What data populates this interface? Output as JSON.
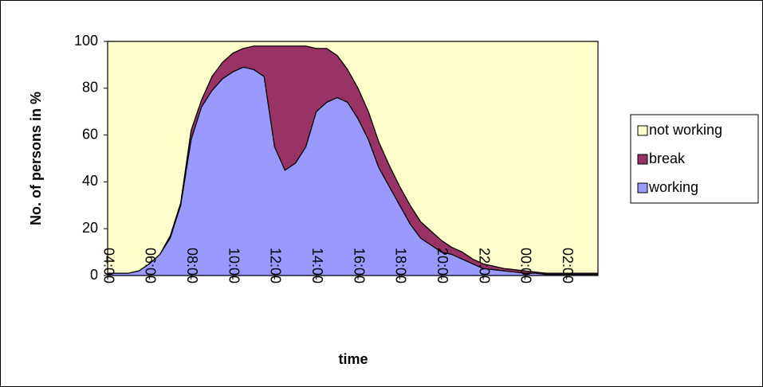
{
  "chart_data": {
    "type": "stacked-area",
    "x_label": "time",
    "y_label": "No. of persons in %",
    "categories": [
      "04:00",
      null,
      null,
      null,
      "06:00",
      null,
      null,
      null,
      "08:00",
      null,
      null,
      null,
      "10:00",
      null,
      null,
      null,
      "12:00",
      null,
      null,
      null,
      "14:00",
      null,
      null,
      null,
      "16:00",
      null,
      null,
      null,
      "18:00",
      null,
      null,
      null,
      "20:00",
      null,
      null,
      null,
      "22:00",
      null,
      null,
      null,
      "00:00",
      null,
      null,
      null,
      "02:00",
      null,
      null,
      null
    ],
    "series": [
      {
        "name": "working",
        "color": "#9999ff",
        "values": [
          1,
          1,
          1,
          2,
          5,
          9,
          16,
          30,
          58,
          72,
          79,
          84,
          87,
          89,
          88,
          85,
          55,
          45,
          48,
          55,
          70,
          74,
          76,
          74,
          67,
          58,
          46,
          38,
          30,
          22,
          16,
          13,
          10,
          9,
          7,
          5,
          3,
          2.5,
          2,
          1.5,
          1,
          1,
          0.5,
          0.5,
          0.5,
          0.5,
          0.5,
          0.5
        ]
      },
      {
        "name": "break",
        "color": "#993366",
        "values": [
          0,
          0,
          0,
          0,
          0,
          0,
          1,
          1,
          4,
          3,
          6,
          7,
          8,
          8,
          10,
          13,
          43,
          53,
          50,
          43,
          27,
          23,
          18,
          14,
          13,
          12,
          11,
          9,
          8,
          8,
          7,
          6,
          5,
          3,
          3,
          2,
          2,
          1.5,
          1,
          1,
          1,
          0.5,
          0.5,
          0.5,
          0.5,
          0.5,
          0.5,
          0.5
        ]
      },
      {
        "name": "not working",
        "color": "#ffffcc",
        "values": [
          99,
          99,
          99,
          98,
          95,
          91,
          83,
          69,
          38,
          25,
          15,
          9,
          5,
          3,
          2,
          2,
          2,
          2,
          2,
          2,
          3,
          3,
          6,
          12,
          20,
          30,
          43,
          53,
          62,
          70,
          77,
          81,
          85,
          88,
          90,
          93,
          95,
          96,
          97,
          97.5,
          98,
          98.5,
          99,
          99,
          99,
          99,
          99,
          99
        ]
      }
    ],
    "ylim": [
      0,
      100
    ],
    "yticks": [
      0,
      20,
      40,
      60,
      80,
      100
    ],
    "grid": false,
    "legend": "right"
  }
}
